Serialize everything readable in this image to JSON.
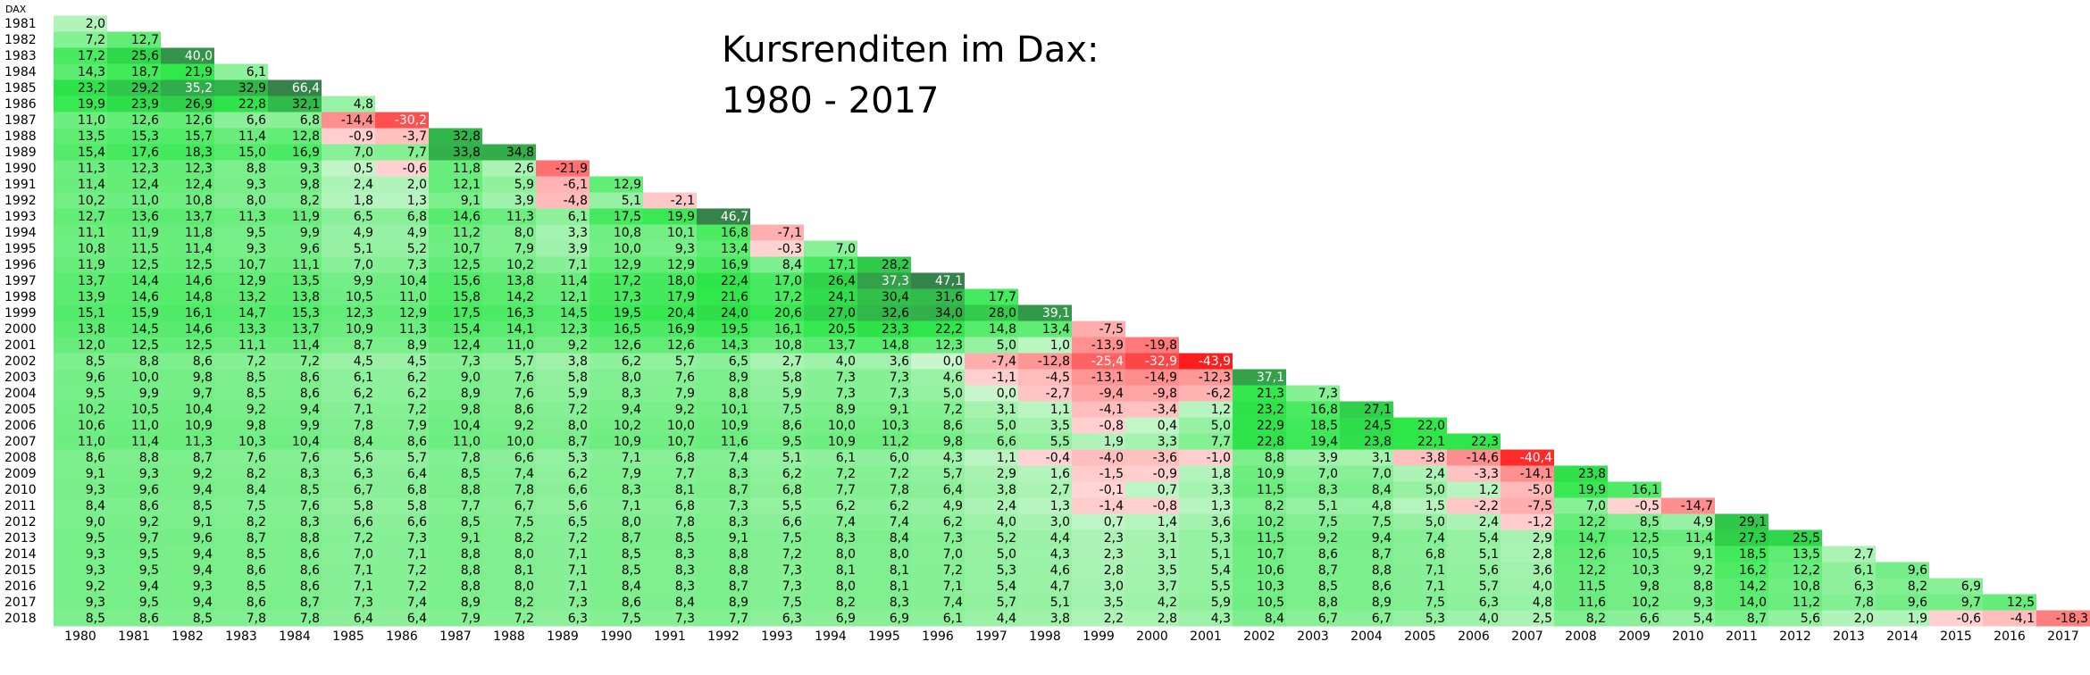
{
  "chart_data": {
    "type": "heatmap",
    "title": [
      "Kursrenditen im Dax:",
      "1980 - 2017"
    ],
    "corner_label": "DAX",
    "row_labels": [
      "1981",
      "1982",
      "1983",
      "1984",
      "1985",
      "1986",
      "1987",
      "1988",
      "1989",
      "1990",
      "1991",
      "1992",
      "1993",
      "1994",
      "1995",
      "1996",
      "1997",
      "1998",
      "1999",
      "2000",
      "2001",
      "2002",
      "2003",
      "2004",
      "2005",
      "2006",
      "2007",
      "2008",
      "2009",
      "2010",
      "2011",
      "2012",
      "2013",
      "2014",
      "2015",
      "2016",
      "2017",
      "2018"
    ],
    "col_labels": [
      "1980",
      "1981",
      "1982",
      "1983",
      "1984",
      "1985",
      "1986",
      "1987",
      "1988",
      "1989",
      "1990",
      "1991",
      "1992",
      "1993",
      "1994",
      "1995",
      "1996",
      "1997",
      "1998",
      "1999",
      "2000",
      "2001",
      "2002",
      "2003",
      "2004",
      "2005",
      "2006",
      "2007",
      "2008",
      "2009",
      "2010",
      "2011",
      "2012",
      "2013",
      "2014",
      "2015",
      "2016",
      "2017"
    ],
    "values": [
      [
        "2,0"
      ],
      [
        "7,2",
        "12,7"
      ],
      [
        "17,2",
        "25,6",
        "40,0"
      ],
      [
        "14,3",
        "18,7",
        "21,9",
        "6,1"
      ],
      [
        "23,2",
        "29,2",
        "35,2",
        "32,9",
        "66,4"
      ],
      [
        "19,9",
        "23,9",
        "26,9",
        "22,8",
        "32,1",
        "4,8"
      ],
      [
        "11,0",
        "12,6",
        "12,6",
        "6,6",
        "6,8",
        "-14,4",
        "-30,2"
      ],
      [
        "13,5",
        "15,3",
        "15,7",
        "11,4",
        "12,8",
        "-0,9",
        "-3,7",
        "32,8"
      ],
      [
        "15,4",
        "17,6",
        "18,3",
        "15,0",
        "16,9",
        "7,0",
        "7,7",
        "33,8",
        "34,8"
      ],
      [
        "11,3",
        "12,3",
        "12,3",
        "8,8",
        "9,3",
        "0,5",
        "-0,6",
        "11,8",
        "2,6",
        "-21,9"
      ],
      [
        "11,4",
        "12,4",
        "12,4",
        "9,3",
        "9,8",
        "2,4",
        "2,0",
        "12,1",
        "5,9",
        "-6,1",
        "12,9"
      ],
      [
        "10,2",
        "11,0",
        "10,8",
        "8,0",
        "8,2",
        "1,8",
        "1,3",
        "9,1",
        "3,9",
        "-4,8",
        "5,1",
        "-2,1"
      ],
      [
        "12,7",
        "13,6",
        "13,7",
        "11,3",
        "11,9",
        "6,5",
        "6,8",
        "14,6",
        "11,3",
        "6,1",
        "17,5",
        "19,9",
        "46,7"
      ],
      [
        "11,1",
        "11,9",
        "11,8",
        "9,5",
        "9,9",
        "4,9",
        "4,9",
        "11,2",
        "8,0",
        "3,3",
        "10,8",
        "10,1",
        "16,8",
        "-7,1"
      ],
      [
        "10,8",
        "11,5",
        "11,4",
        "9,3",
        "9,6",
        "5,1",
        "5,2",
        "10,7",
        "7,9",
        "3,9",
        "10,0",
        "9,3",
        "13,4",
        "-0,3",
        "7,0"
      ],
      [
        "11,9",
        "12,5",
        "12,5",
        "10,7",
        "11,1",
        "7,0",
        "7,3",
        "12,5",
        "10,2",
        "7,1",
        "12,9",
        "12,9",
        "16,9",
        "8,4",
        "17,1",
        "28,2"
      ],
      [
        "13,7",
        "14,4",
        "14,6",
        "12,9",
        "13,5",
        "9,9",
        "10,4",
        "15,6",
        "13,8",
        "11,4",
        "17,2",
        "18,0",
        "22,4",
        "17,0",
        "26,4",
        "37,3",
        "47,1"
      ],
      [
        "13,9",
        "14,6",
        "14,8",
        "13,2",
        "13,8",
        "10,5",
        "11,0",
        "15,8",
        "14,2",
        "12,1",
        "17,3",
        "17,9",
        "21,6",
        "17,2",
        "24,1",
        "30,4",
        "31,6",
        "17,7"
      ],
      [
        "15,1",
        "15,9",
        "16,1",
        "14,7",
        "15,3",
        "12,3",
        "12,9",
        "17,5",
        "16,3",
        "14,5",
        "19,5",
        "20,4",
        "24,0",
        "20,6",
        "27,0",
        "32,6",
        "34,0",
        "28,0",
        "39,1"
      ],
      [
        "13,8",
        "14,5",
        "14,6",
        "13,3",
        "13,7",
        "10,9",
        "11,3",
        "15,4",
        "14,1",
        "12,3",
        "16,5",
        "16,9",
        "19,5",
        "16,1",
        "20,5",
        "23,3",
        "22,2",
        "14,8",
        "13,4",
        "-7,5"
      ],
      [
        "12,0",
        "12,5",
        "12,5",
        "11,1",
        "11,4",
        "8,7",
        "8,9",
        "12,4",
        "11,0",
        "9,2",
        "12,6",
        "12,6",
        "14,3",
        "10,8",
        "13,7",
        "14,8",
        "12,3",
        "5,0",
        "1,0",
        "-13,9",
        "-19,8"
      ],
      [
        "8,5",
        "8,8",
        "8,6",
        "7,2",
        "7,2",
        "4,5",
        "4,5",
        "7,3",
        "5,7",
        "3,8",
        "6,2",
        "5,7",
        "6,5",
        "2,7",
        "4,0",
        "3,6",
        "0,0",
        "-7,4",
        "-12,8",
        "-25,4",
        "-32,9",
        "-43,9"
      ],
      [
        "9,6",
        "10,0",
        "9,8",
        "8,5",
        "8,6",
        "6,1",
        "6,2",
        "9,0",
        "7,6",
        "5,8",
        "8,0",
        "7,6",
        "8,9",
        "5,8",
        "7,3",
        "7,3",
        "4,6",
        "-1,1",
        "-4,5",
        "-13,1",
        "-14,9",
        "-12,3",
        "37,1"
      ],
      [
        "9,5",
        "9,9",
        "9,7",
        "8,5",
        "8,6",
        "6,2",
        "6,2",
        "8,9",
        "7,6",
        "5,9",
        "8,3",
        "7,9",
        "8,8",
        "5,9",
        "7,3",
        "7,3",
        "5,0",
        "0,0",
        "-2,7",
        "-9,4",
        "-9,8",
        "-6,2",
        "21,3",
        "7,3"
      ],
      [
        "10,2",
        "10,5",
        "10,4",
        "9,2",
        "9,4",
        "7,1",
        "7,2",
        "9,8",
        "8,6",
        "7,2",
        "9,4",
        "9,2",
        "10,1",
        "7,5",
        "8,9",
        "9,1",
        "7,2",
        "3,1",
        "1,1",
        "-4,1",
        "-3,4",
        "1,2",
        "23,2",
        "16,8",
        "27,1"
      ],
      [
        "10,6",
        "11,0",
        "10,9",
        "9,8",
        "9,9",
        "7,8",
        "7,9",
        "10,4",
        "9,2",
        "8,0",
        "10,2",
        "10,0",
        "10,9",
        "8,6",
        "10,0",
        "10,3",
        "8,6",
        "5,0",
        "3,5",
        "-0,8",
        "0,4",
        "5,0",
        "22,9",
        "18,5",
        "24,5",
        "22,0"
      ],
      [
        "11,0",
        "11,4",
        "11,3",
        "10,3",
        "10,4",
        "8,4",
        "8,6",
        "11,0",
        "10,0",
        "8,7",
        "10,9",
        "10,7",
        "11,6",
        "9,5",
        "10,9",
        "11,2",
        "9,8",
        "6,6",
        "5,5",
        "1,9",
        "3,3",
        "7,7",
        "22,8",
        "19,4",
        "23,8",
        "22,1",
        "22,3"
      ],
      [
        "8,6",
        "8,8",
        "8,7",
        "7,6",
        "7,6",
        "5,6",
        "5,7",
        "7,8",
        "6,6",
        "5,3",
        "7,1",
        "6,8",
        "7,4",
        "5,1",
        "6,1",
        "6,0",
        "4,3",
        "1,1",
        "-0,4",
        "-4,0",
        "-3,6",
        "-1,0",
        "8,8",
        "3,9",
        "3,1",
        "-3,8",
        "-14,6",
        "-40,4"
      ],
      [
        "9,1",
        "9,3",
        "9,2",
        "8,2",
        "8,3",
        "6,3",
        "6,4",
        "8,5",
        "7,4",
        "6,2",
        "7,9",
        "7,7",
        "8,3",
        "6,2",
        "7,2",
        "7,2",
        "5,7",
        "2,9",
        "1,6",
        "-1,5",
        "-0,9",
        "1,8",
        "10,9",
        "7,0",
        "7,0",
        "2,4",
        "-3,3",
        "-14,1",
        "23,8"
      ],
      [
        "9,3",
        "9,6",
        "9,4",
        "8,4",
        "8,5",
        "6,7",
        "6,8",
        "8,8",
        "7,8",
        "6,6",
        "8,3",
        "8,1",
        "8,7",
        "6,8",
        "7,7",
        "7,8",
        "6,4",
        "3,8",
        "2,7",
        "-0,1",
        "0,7",
        "3,3",
        "11,5",
        "8,3",
        "8,4",
        "5,0",
        "1,2",
        "-5,0",
        "19,9",
        "16,1"
      ],
      [
        "8,4",
        "8,6",
        "8,5",
        "7,5",
        "7,6",
        "5,8",
        "5,8",
        "7,7",
        "6,7",
        "5,6",
        "7,1",
        "6,8",
        "7,3",
        "5,5",
        "6,2",
        "6,2",
        "4,9",
        "2,4",
        "1,3",
        "-1,4",
        "-0,8",
        "1,3",
        "8,2",
        "5,1",
        "4,8",
        "1,5",
        "-2,2",
        "-7,5",
        "7,0",
        "-0,5",
        "-14,7"
      ],
      [
        "9,0",
        "9,2",
        "9,1",
        "8,2",
        "8,3",
        "6,6",
        "6,6",
        "8,5",
        "7,5",
        "6,5",
        "8,0",
        "7,8",
        "8,3",
        "6,6",
        "7,4",
        "7,4",
        "6,2",
        "4,0",
        "3,0",
        "0,7",
        "1,4",
        "3,6",
        "10,2",
        "7,5",
        "7,5",
        "5,0",
        "2,4",
        "-1,2",
        "12,2",
        "8,5",
        "4,9",
        "29,1"
      ],
      [
        "9,5",
        "9,7",
        "9,6",
        "8,7",
        "8,8",
        "7,2",
        "7,3",
        "9,1",
        "8,2",
        "7,2",
        "8,7",
        "8,5",
        "9,1",
        "7,5",
        "8,3",
        "8,4",
        "7,3",
        "5,2",
        "4,4",
        "2,3",
        "3,1",
        "5,3",
        "11,5",
        "9,2",
        "9,4",
        "7,4",
        "5,4",
        "2,9",
        "14,7",
        "12,5",
        "11,4",
        "27,3",
        "25,5"
      ],
      [
        "9,3",
        "9,5",
        "9,4",
        "8,5",
        "8,6",
        "7,0",
        "7,1",
        "8,8",
        "8,0",
        "7,1",
        "8,5",
        "8,3",
        "8,8",
        "7,2",
        "8,0",
        "8,0",
        "7,0",
        "5,0",
        "4,3",
        "2,3",
        "3,1",
        "5,1",
        "10,7",
        "8,6",
        "8,7",
        "6,8",
        "5,1",
        "2,8",
        "12,6",
        "10,5",
        "9,1",
        "18,5",
        "13,5",
        "2,7"
      ],
      [
        "9,3",
        "9,5",
        "9,4",
        "8,6",
        "8,6",
        "7,1",
        "7,2",
        "8,8",
        "8,1",
        "7,1",
        "8,5",
        "8,3",
        "8,8",
        "7,3",
        "8,1",
        "8,1",
        "7,2",
        "5,3",
        "4,6",
        "2,8",
        "3,5",
        "5,4",
        "10,6",
        "8,7",
        "8,8",
        "7,1",
        "5,6",
        "3,6",
        "12,2",
        "10,3",
        "9,2",
        "16,2",
        "12,2",
        "6,1",
        "9,6"
      ],
      [
        "9,2",
        "9,4",
        "9,3",
        "8,5",
        "8,6",
        "7,1",
        "7,2",
        "8,8",
        "8,0",
        "7,1",
        "8,4",
        "8,3",
        "8,7",
        "7,3",
        "8,0",
        "8,1",
        "7,1",
        "5,4",
        "4,7",
        "3,0",
        "3,7",
        "5,5",
        "10,3",
        "8,5",
        "8,6",
        "7,1",
        "5,7",
        "4,0",
        "11,5",
        "9,8",
        "8,8",
        "14,2",
        "10,8",
        "6,3",
        "8,2",
        "6,9"
      ],
      [
        "9,3",
        "9,5",
        "9,4",
        "8,6",
        "8,7",
        "7,3",
        "7,4",
        "8,9",
        "8,2",
        "7,3",
        "8,6",
        "8,4",
        "8,9",
        "7,5",
        "8,2",
        "8,3",
        "7,4",
        "5,7",
        "5,1",
        "3,5",
        "4,2",
        "5,9",
        "10,5",
        "8,8",
        "8,9",
        "7,5",
        "6,3",
        "4,8",
        "11,6",
        "10,2",
        "9,3",
        "14,0",
        "11,2",
        "7,8",
        "9,6",
        "9,7",
        "12,5"
      ],
      [
        "8,5",
        "8,6",
        "8,5",
        "7,8",
        "7,8",
        "6,4",
        "6,4",
        "7,9",
        "7,2",
        "6,3",
        "7,5",
        "7,3",
        "7,7",
        "6,3",
        "6,9",
        "6,9",
        "6,1",
        "4,4",
        "3,8",
        "2,2",
        "2,8",
        "4,3",
        "8,4",
        "6,7",
        "6,7",
        "5,3",
        "4,0",
        "2,5",
        "8,2",
        "6,6",
        "5,4",
        "8,7",
        "5,6",
        "2,0",
        "1,9",
        "-0,6",
        "-4,1",
        "-18,3"
      ]
    ],
    "colors": {
      "positive_max": "#35824a",
      "positive_mid": "#2ee84a",
      "positive_min": "#caf6cf",
      "negative_min": "#ffd6d6",
      "negative_max": "#ff1e1e"
    },
    "grid": false
  }
}
